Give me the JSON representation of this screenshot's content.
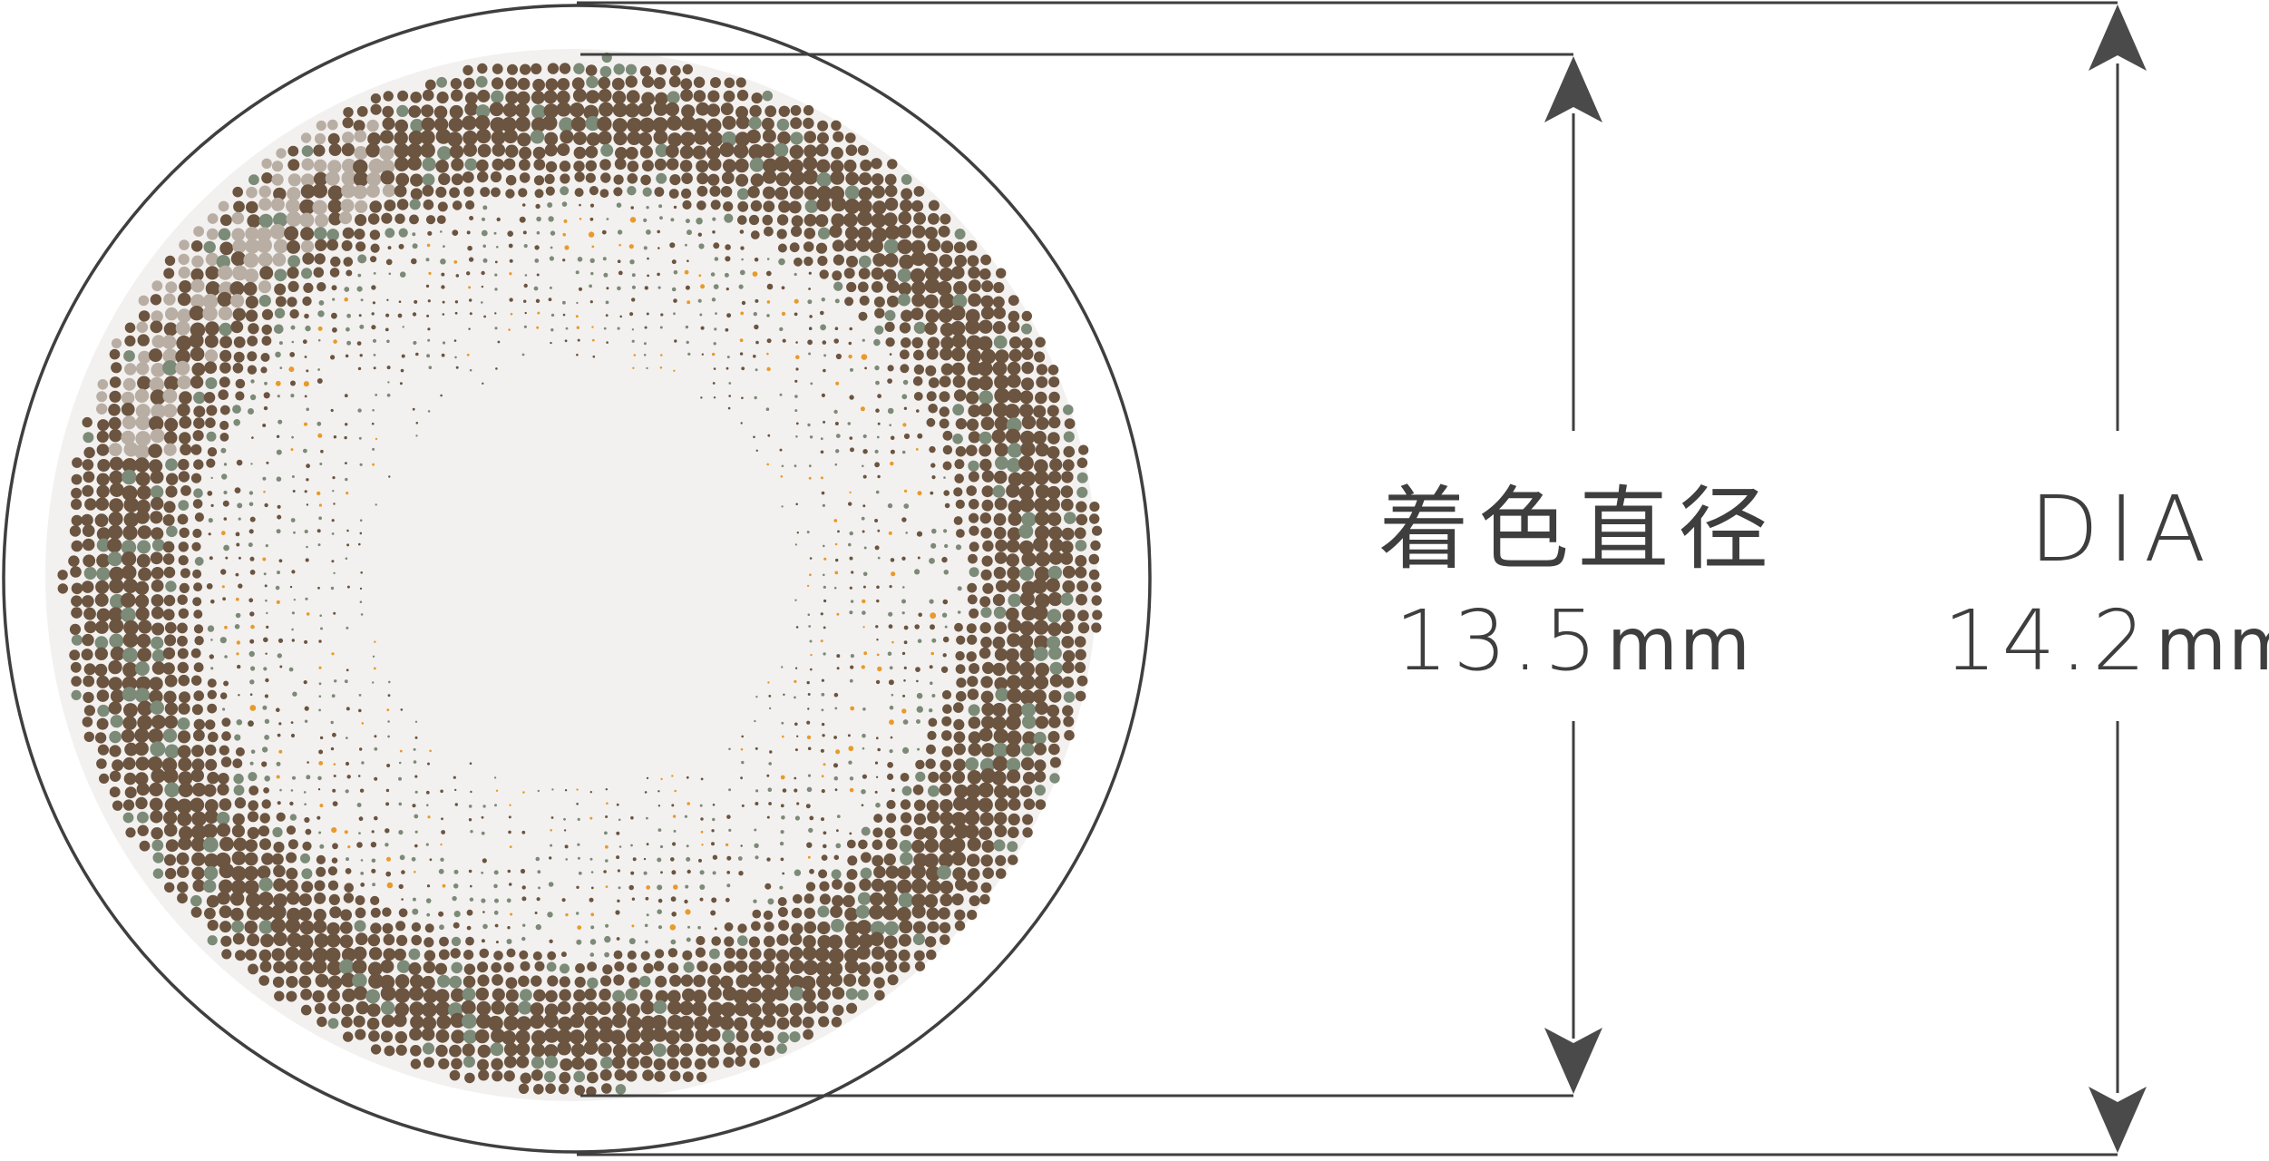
{
  "colored_diameter": {
    "title": "着色直径",
    "value": "13.5",
    "unit": "mm"
  },
  "total_diameter": {
    "title": "DIA",
    "value": "14.2",
    "unit": "mm"
  },
  "lens": {
    "pattern_colors": {
      "outer_ring": "#6b5440",
      "mid_dots": "#7c8a78",
      "accent_dots": "#e89a2a",
      "outline": "#3f3f3f"
    }
  }
}
